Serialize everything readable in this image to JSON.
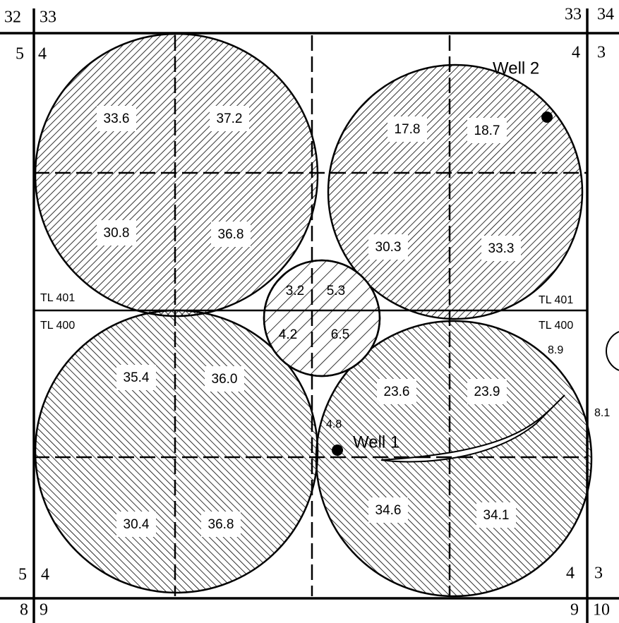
{
  "section_numbers": [
    "32",
    "33",
    "33",
    "34",
    "5",
    "4",
    "4",
    "3",
    "5",
    "4",
    "4",
    "3",
    "8",
    "9",
    "9",
    "10"
  ],
  "circles": [
    {
      "quadrants": [
        "33.6",
        "37.2",
        "30.8",
        "36.8"
      ]
    },
    {
      "quadrants": [
        "17.8",
        "18.7",
        "30.3",
        "33.3"
      ]
    },
    {
      "quadrants": [
        "3.2",
        "5.3",
        "4.2",
        "6.5"
      ]
    },
    {
      "quadrants": [
        "35.4",
        "36.0",
        "30.4",
        "36.8"
      ]
    },
    {
      "quadrants": [
        "23.6",
        "23.9",
        "34.6",
        "34.1"
      ]
    }
  ],
  "tract_lines": [
    "TL 401",
    "TL 400",
    "TL 401",
    "TL 400"
  ],
  "wells": [
    "Well 2",
    "Well 1"
  ],
  "other_labels": [
    "8.9",
    "8.1",
    "4.8"
  ]
}
